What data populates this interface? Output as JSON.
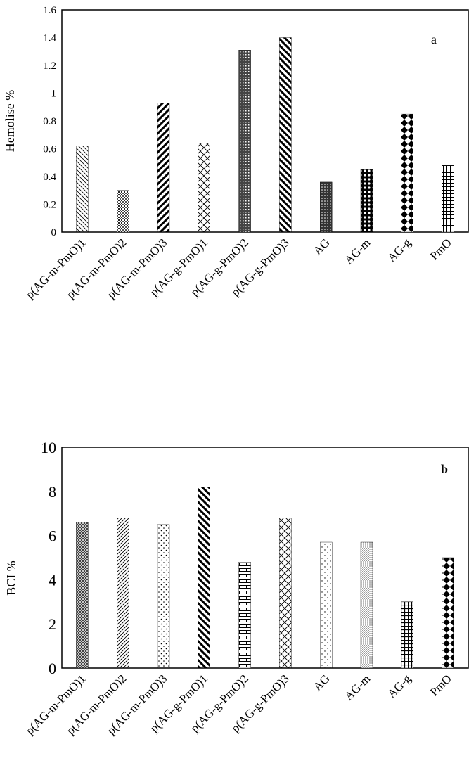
{
  "figure": "Hemolysis and blood clotting index bar charts",
  "chart_data": [
    {
      "type": "bar",
      "panel_label": "a",
      "title": "",
      "xlabel": "",
      "ylabel": "Hemolise %",
      "ylim": [
        0,
        1.6
      ],
      "yticks": [
        "0",
        "0.2",
        "0.4",
        "0.6",
        "0.8",
        "1",
        "1.2",
        "1.4",
        "1.6"
      ],
      "categories": [
        "p(AG-m-PmO)1",
        "p(AG-m-PmO)2",
        "p(AG-m-PmO)3",
        "p(AG-g-PmO)1",
        "p(AG-g-PmO)2",
        "p(AG-g-PmO)3",
        "AG",
        "AG-m",
        "AG-g",
        "PmO"
      ],
      "values": [
        0.62,
        0.3,
        0.93,
        0.64,
        1.31,
        1.4,
        0.36,
        0.45,
        0.85,
        0.48
      ]
    },
    {
      "type": "bar",
      "panel_label": "b",
      "title": "",
      "xlabel": "",
      "ylabel": "BCI %",
      "ylim": [
        0,
        10
      ],
      "yticks": [
        "0",
        "2",
        "4",
        "6",
        "8",
        "10"
      ],
      "categories": [
        "p(AG-m-PmO)1",
        "p(AG-m-PmO)2",
        "p(AG-m-PmO)3",
        "p(AG-g-PmO)1",
        "p(AG-g-PmO)2",
        "p(AG-g-PmO)3",
        "AG",
        "AG-m",
        "AG-g",
        "PmO"
      ],
      "values": [
        6.6,
        6.8,
        6.5,
        8.2,
        4.8,
        6.8,
        5.7,
        5.7,
        3.0,
        5.0
      ]
    }
  ]
}
